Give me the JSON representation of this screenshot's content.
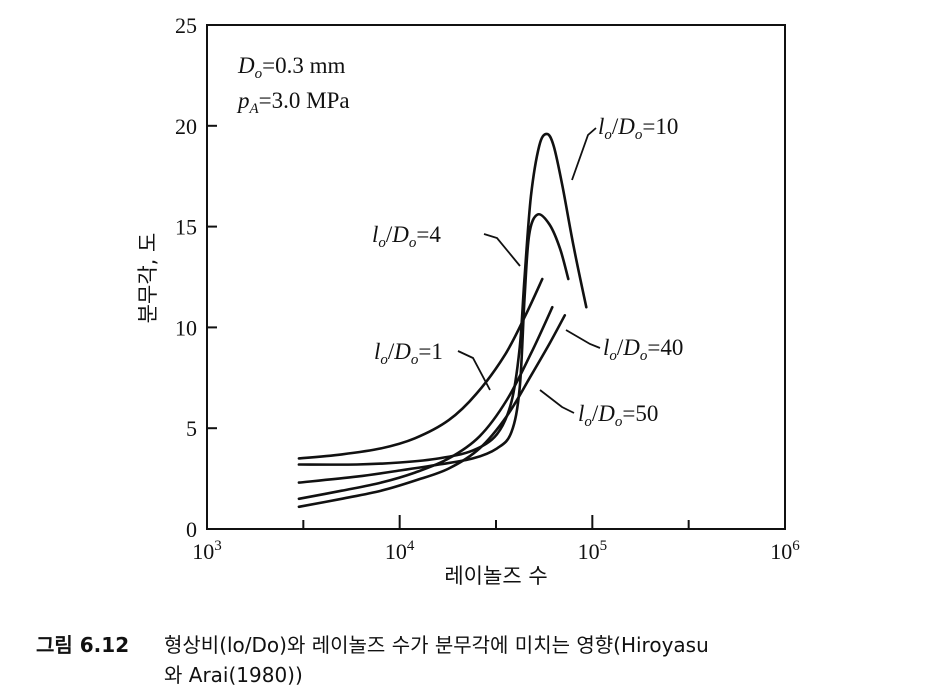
{
  "chart_data": {
    "type": "line",
    "x_scale": "log",
    "xlim": [
      1000,
      1000000
    ],
    "ylim": [
      0,
      25
    ],
    "xlabel": "레이놀즈 수",
    "ylabel": "분무각, 도",
    "x_ticks": [
      {
        "value": 1000,
        "base": "10",
        "exp": "3"
      },
      {
        "value": 10000,
        "base": "10",
        "exp": "4"
      },
      {
        "value": 100000,
        "base": "10",
        "exp": "5"
      },
      {
        "value": 1000000,
        "base": "10",
        "exp": "6"
      }
    ],
    "y_ticks": [
      "0",
      "5",
      "10",
      "15",
      "20",
      "25"
    ],
    "grid": false,
    "conditions": [
      {
        "var": "D",
        "sub": "o",
        "rest": "=0.3 mm"
      },
      {
        "var": "p",
        "sub": "A",
        "rest": "=3.0 MPa"
      }
    ],
    "series": [
      {
        "name": "lo/Do=1",
        "label": {
          "var": "l",
          "sub": "o",
          "mid": "/",
          "var2": "D",
          "sub2": "o",
          "rest": "=1"
        },
        "points": [
          [
            3000,
            3.5
          ],
          [
            5000,
            3.7
          ],
          [
            8000,
            4.0
          ],
          [
            12000,
            4.5
          ],
          [
            18000,
            5.4
          ],
          [
            25000,
            6.7
          ],
          [
            35000,
            8.6
          ],
          [
            45000,
            10.6
          ],
          [
            55000,
            12.4
          ]
        ]
      },
      {
        "name": "lo/Do=4",
        "label": {
          "var": "l",
          "sub": "o",
          "mid": "/",
          "var2": "D",
          "sub2": "o",
          "rest": "=4"
        },
        "points": [
          [
            3000,
            2.3
          ],
          [
            6000,
            2.6
          ],
          [
            10000,
            2.9
          ],
          [
            16000,
            3.2
          ],
          [
            24000,
            3.5
          ],
          [
            32000,
            4.0
          ],
          [
            38000,
            4.8
          ],
          [
            42000,
            7.0
          ],
          [
            44500,
            11.5
          ],
          [
            47000,
            14.6
          ],
          [
            52000,
            15.6
          ],
          [
            60000,
            15.1
          ],
          [
            68000,
            13.9
          ],
          [
            75000,
            12.4
          ]
        ]
      },
      {
        "name": "lo/Do=10",
        "label": {
          "var": "l",
          "sub": "o",
          "mid": "/",
          "var2": "D",
          "sub2": "o",
          "rest": "=10"
        },
        "points": [
          [
            3000,
            3.2
          ],
          [
            6000,
            3.2
          ],
          [
            10000,
            3.3
          ],
          [
            16000,
            3.5
          ],
          [
            24000,
            3.9
          ],
          [
            32000,
            4.7
          ],
          [
            38000,
            6.3
          ],
          [
            42000,
            9.0
          ],
          [
            44500,
            12.5
          ],
          [
            48000,
            16.5
          ],
          [
            53000,
            19.0
          ],
          [
            58000,
            19.6
          ],
          [
            63000,
            19.0
          ],
          [
            70000,
            17.0
          ],
          [
            80000,
            14.0
          ],
          [
            93000,
            11.0
          ]
        ]
      },
      {
        "name": "lo/Do=40",
        "label": {
          "var": "l",
          "sub": "o",
          "mid": "/",
          "var2": "D",
          "sub2": "o",
          "rest": "=40"
        },
        "points": [
          [
            3000,
            1.5
          ],
          [
            5000,
            1.9
          ],
          [
            8000,
            2.3
          ],
          [
            12000,
            2.8
          ],
          [
            18000,
            3.5
          ],
          [
            26000,
            4.6
          ],
          [
            36000,
            6.4
          ],
          [
            48000,
            8.7
          ],
          [
            62000,
            11.0
          ]
        ]
      },
      {
        "name": "lo/Do=50",
        "label": {
          "var": "l",
          "sub": "o",
          "mid": "/",
          "var2": "D",
          "sub2": "o",
          "rest": "=50"
        },
        "points": [
          [
            3000,
            1.1
          ],
          [
            5000,
            1.5
          ],
          [
            8000,
            1.9
          ],
          [
            12000,
            2.4
          ],
          [
            18000,
            3.0
          ],
          [
            26000,
            4.0
          ],
          [
            36000,
            5.6
          ],
          [
            48000,
            7.6
          ],
          [
            60000,
            9.2
          ],
          [
            72000,
            10.6
          ]
        ]
      }
    ]
  },
  "caption": {
    "number": "그림 6.12",
    "text_line1": "형상비(lo/Do)와 레이놀즈 수가 분무각에 미치는 영향(Hiroyasu",
    "text_line2": "와 Arai(1980))"
  }
}
